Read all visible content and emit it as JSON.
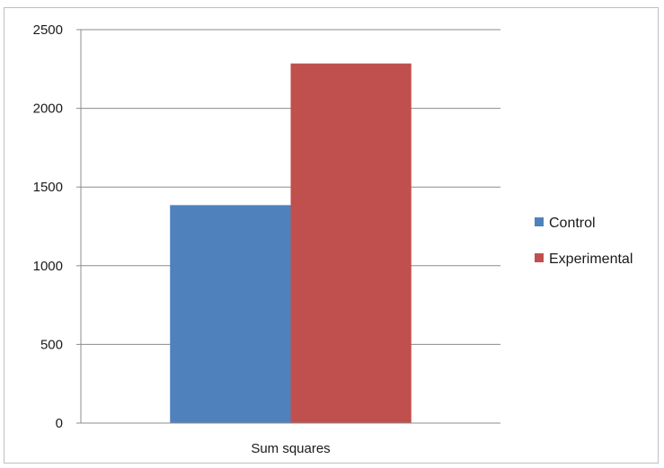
{
  "chart_data": {
    "type": "bar",
    "categories": [
      "Sum squares"
    ],
    "series": [
      {
        "name": "Control",
        "values": [
          1385
        ],
        "color": "#4f81bd"
      },
      {
        "name": "Experimental",
        "values": [
          2285
        ],
        "color": "#c0504d"
      }
    ],
    "ylim": [
      0,
      2500
    ],
    "yticks": [
      "0",
      "500",
      "1000",
      "1500",
      "2000",
      "2500"
    ],
    "grid": true,
    "legend_position": "right"
  }
}
